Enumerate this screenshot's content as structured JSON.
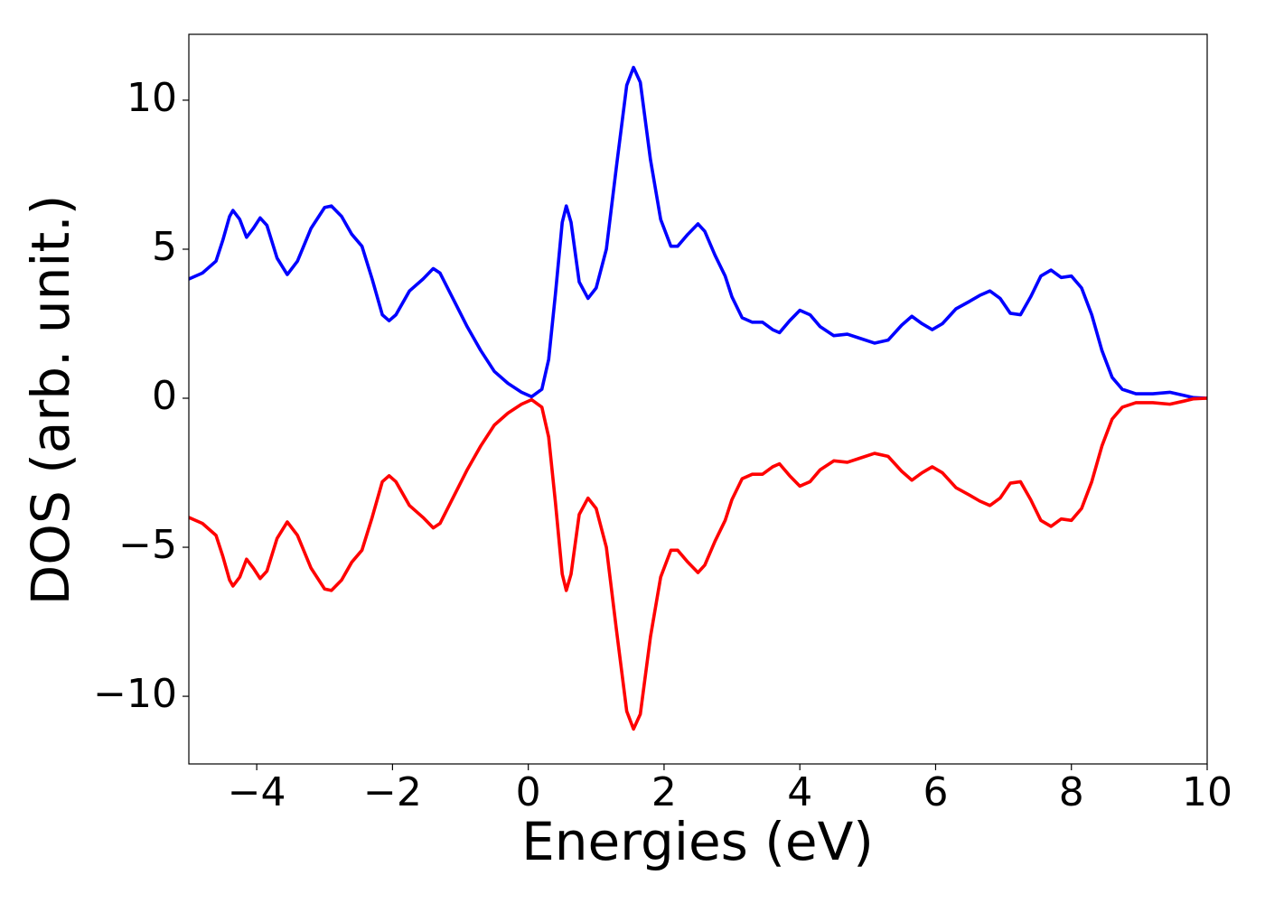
{
  "chart_data": {
    "type": "line",
    "xlabel": "Energies (eV)",
    "ylabel": "DOS (arb. unit.)",
    "xlim": [
      -5,
      10
    ],
    "ylim": [
      -12.27,
      12.21
    ],
    "xticks": [
      {
        "value": -4,
        "label": "−4"
      },
      {
        "value": -2,
        "label": "−2"
      },
      0,
      2,
      4,
      6,
      8,
      10
    ],
    "yticks": [
      {
        "value": -10,
        "label": "−10"
      },
      {
        "value": -5,
        "label": "−5"
      },
      0,
      5,
      10
    ],
    "x": [
      -5,
      -4.8,
      -4.6,
      -4.5,
      -4.4,
      -4.35,
      -4.25,
      -4.15,
      -4.05,
      -3.95,
      -3.85,
      -3.7,
      -3.55,
      -3.4,
      -3.2,
      -3.0,
      -2.9,
      -2.75,
      -2.6,
      -2.45,
      -2.3,
      -2.15,
      -2.05,
      -1.95,
      -1.75,
      -1.55,
      -1.4,
      -1.3,
      -1.1,
      -0.9,
      -0.7,
      -0.5,
      -0.3,
      -0.1,
      0.05,
      0.2,
      0.3,
      0.4,
      0.5,
      0.56,
      0.63,
      0.75,
      0.88,
      1.0,
      1.15,
      1.3,
      1.45,
      1.55,
      1.65,
      1.8,
      1.95,
      2.1,
      2.2,
      2.35,
      2.5,
      2.6,
      2.75,
      2.9,
      3.0,
      3.15,
      3.3,
      3.45,
      3.6,
      3.7,
      3.85,
      4.0,
      4.15,
      4.3,
      4.5,
      4.7,
      4.9,
      5.1,
      5.3,
      5.5,
      5.65,
      5.8,
      5.95,
      6.1,
      6.3,
      6.5,
      6.65,
      6.8,
      6.95,
      7.1,
      7.25,
      7.4,
      7.55,
      7.7,
      7.85,
      8.0,
      8.15,
      8.3,
      8.45,
      8.6,
      8.75,
      8.95,
      9.2,
      9.45,
      9.65,
      9.8,
      10
    ],
    "series": [
      {
        "color": "#0000ff",
        "values": [
          4.0,
          4.2,
          4.6,
          5.3,
          6.1,
          6.3,
          6.0,
          5.4,
          5.7,
          6.05,
          5.8,
          4.7,
          4.15,
          4.6,
          5.7,
          6.4,
          6.45,
          6.1,
          5.5,
          5.1,
          4.0,
          2.8,
          2.6,
          2.8,
          3.6,
          4.0,
          4.35,
          4.2,
          3.3,
          2.4,
          1.6,
          0.9,
          0.5,
          0.2,
          0.05,
          0.3,
          1.3,
          3.5,
          5.9,
          6.45,
          5.9,
          3.9,
          3.35,
          3.7,
          5.0,
          7.8,
          10.5,
          11.1,
          10.6,
          8.0,
          6.0,
          5.1,
          5.1,
          5.5,
          5.85,
          5.6,
          4.8,
          4.1,
          3.4,
          2.7,
          2.55,
          2.55,
          2.3,
          2.2,
          2.6,
          2.95,
          2.8,
          2.4,
          2.1,
          2.15,
          2.0,
          1.85,
          1.95,
          2.45,
          2.75,
          2.5,
          2.3,
          2.5,
          3.0,
          3.25,
          3.45,
          3.6,
          3.35,
          2.85,
          2.8,
          3.4,
          4.1,
          4.3,
          4.05,
          4.1,
          3.7,
          2.8,
          1.6,
          0.7,
          0.3,
          0.15,
          0.15,
          0.2,
          0.1,
          0.02,
          0.0
        ]
      },
      {
        "color": "#ff0000",
        "values": [
          -4.0,
          -4.2,
          -4.6,
          -5.3,
          -6.1,
          -6.3,
          -6.0,
          -5.4,
          -5.7,
          -6.05,
          -5.8,
          -4.7,
          -4.15,
          -4.6,
          -5.7,
          -6.4,
          -6.45,
          -6.1,
          -5.5,
          -5.1,
          -4.0,
          -2.8,
          -2.6,
          -2.8,
          -3.6,
          -4.0,
          -4.35,
          -4.2,
          -3.3,
          -2.4,
          -1.6,
          -0.9,
          -0.5,
          -0.2,
          -0.05,
          -0.3,
          -1.3,
          -3.5,
          -5.9,
          -6.45,
          -5.9,
          -3.9,
          -3.35,
          -3.7,
          -5.0,
          -7.8,
          -10.5,
          -11.1,
          -10.6,
          -8.0,
          -6.0,
          -5.1,
          -5.1,
          -5.5,
          -5.85,
          -5.6,
          -4.8,
          -4.1,
          -3.4,
          -2.7,
          -2.55,
          -2.55,
          -2.3,
          -2.2,
          -2.6,
          -2.95,
          -2.8,
          -2.4,
          -2.1,
          -2.15,
          -2.0,
          -1.85,
          -1.95,
          -2.45,
          -2.75,
          -2.5,
          -2.3,
          -2.5,
          -3.0,
          -3.25,
          -3.45,
          -3.6,
          -3.35,
          -2.85,
          -2.8,
          -3.4,
          -4.1,
          -4.3,
          -4.05,
          -4.1,
          -3.7,
          -2.8,
          -1.6,
          -0.7,
          -0.3,
          -0.15,
          -0.15,
          -0.2,
          -0.1,
          -0.02,
          0.0
        ]
      }
    ]
  }
}
